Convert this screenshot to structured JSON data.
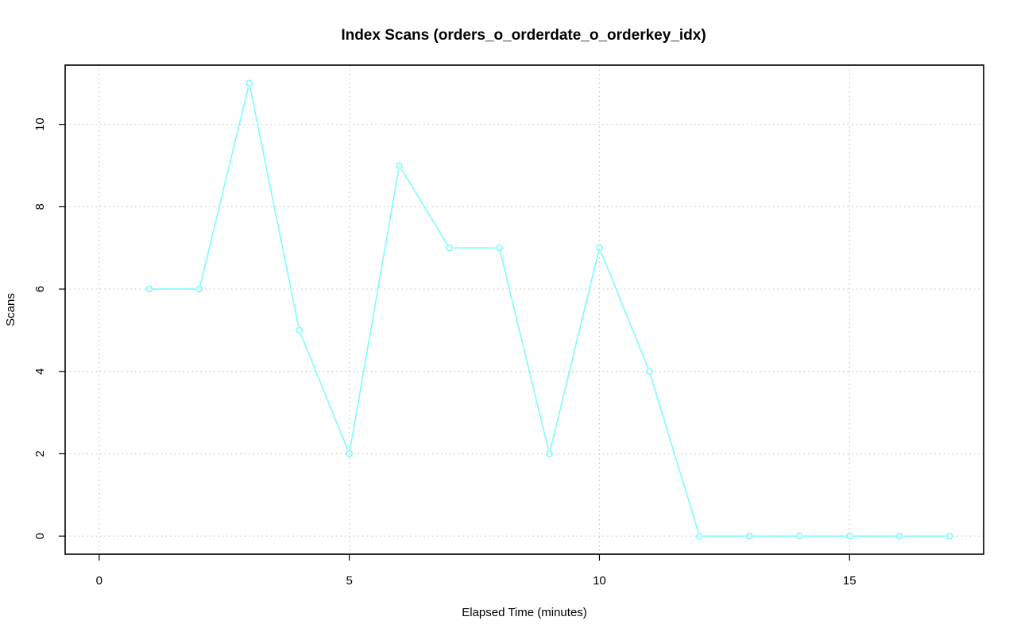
{
  "chart_data": {
    "type": "line",
    "title": "Index Scans (orders_o_orderdate_o_orderkey_idx)",
    "xlabel": "Elapsed Time (minutes)",
    "ylabel": "Scans",
    "xlim": [
      -0.68,
      17.68
    ],
    "ylim": [
      -0.44,
      11.44
    ],
    "x_ticks": [
      0,
      5,
      10,
      15
    ],
    "y_ticks": [
      0,
      2,
      4,
      6,
      8,
      10
    ],
    "x_tick_labels": [
      "0",
      "5",
      "10",
      "15"
    ],
    "y_tick_labels": [
      "0",
      "2",
      "4",
      "6",
      "8",
      "10"
    ],
    "grid": true,
    "series": [
      {
        "color": "#7ffcfc",
        "marker": "open-circle",
        "x": [
          1,
          2,
          3,
          4,
          5,
          6,
          7,
          8,
          9,
          10,
          11,
          12,
          13,
          14,
          15,
          16,
          17
        ],
        "y": [
          6,
          6,
          11,
          5,
          2,
          9,
          7,
          7,
          2,
          7,
          4,
          0,
          0,
          0,
          0,
          0,
          0
        ]
      }
    ]
  }
}
